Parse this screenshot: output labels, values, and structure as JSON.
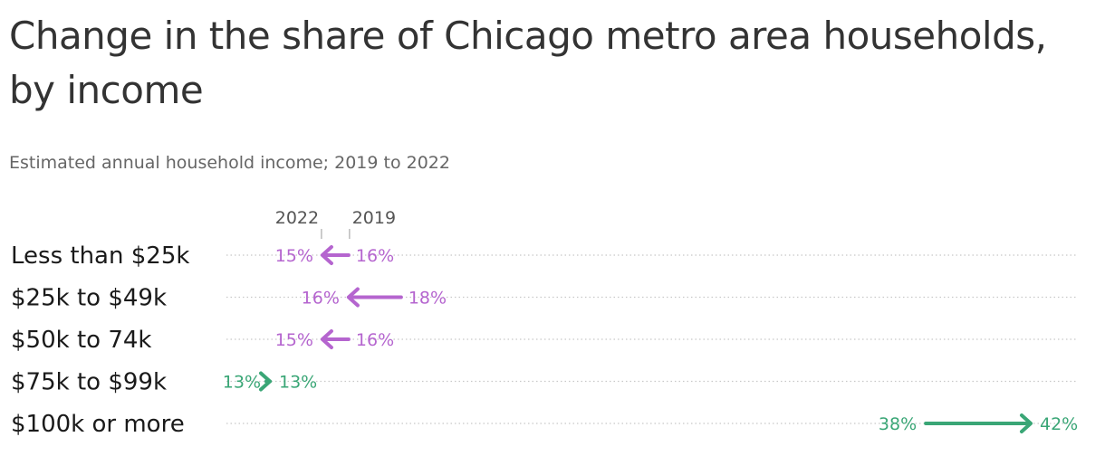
{
  "title": "Change in the share of Chicago metro area households, by income",
  "subtitle": "Estimated annual household income; 2019 to 2022",
  "colors": {
    "decrease": "#b565cf",
    "increase": "#3aa676",
    "grid": "#c8c8c8",
    "marker": "#999999"
  },
  "chart_data": {
    "type": "arrow",
    "categories": [
      "Less than $25k",
      "$25k to $49k",
      "$50k to 74k",
      "$75k to $99k",
      "$100k or more"
    ],
    "series": [
      {
        "name": "2019",
        "values": [
          16,
          18,
          16,
          13,
          38
        ]
      },
      {
        "name": "2022",
        "values": [
          15,
          16,
          15,
          13,
          42
        ]
      }
    ],
    "value_labels": {
      "2019": [
        "16%",
        "18%",
        "16%",
        "13%",
        "38%"
      ],
      "2022": [
        "15%",
        "16%",
        "15%",
        "13%",
        "42%"
      ]
    },
    "legend_labels": [
      "2022",
      "2019"
    ],
    "xlim": [
      13,
      42
    ],
    "grid": "dotted row lines",
    "unit": "%"
  }
}
